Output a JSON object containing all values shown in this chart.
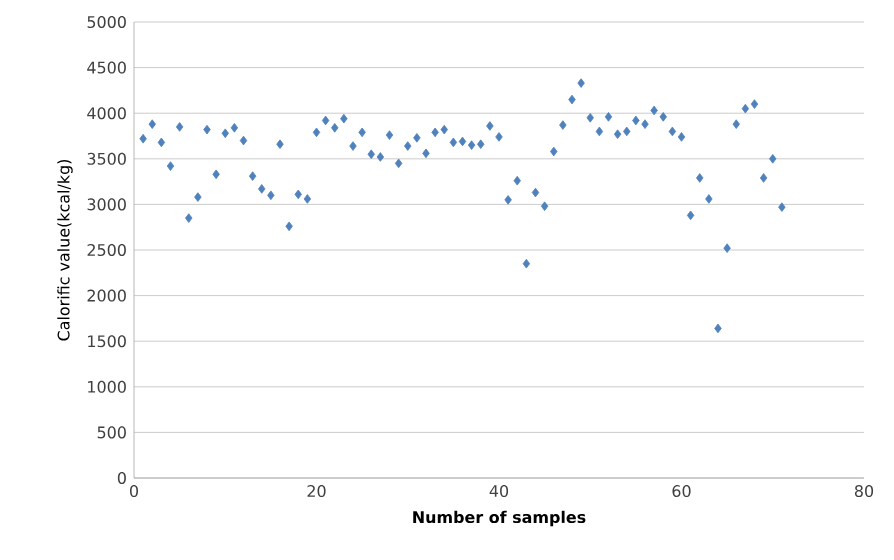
{
  "chart_data": {
    "type": "scatter",
    "xlabel": "Number of samples",
    "ylabel": "Calorific value(kcal/kg)",
    "x": [
      1,
      2,
      3,
      4,
      5,
      6,
      7,
      8,
      9,
      10,
      11,
      12,
      13,
      14,
      15,
      16,
      17,
      18,
      19,
      20,
      21,
      22,
      23,
      24,
      25,
      26,
      27,
      28,
      29,
      30,
      31,
      32,
      33,
      34,
      35,
      36,
      37,
      38,
      39,
      40,
      41,
      42,
      43,
      44,
      45,
      46,
      47,
      48,
      49,
      50,
      51,
      52,
      53,
      54,
      55,
      56,
      57,
      58,
      59,
      60,
      61,
      62,
      63,
      64,
      65,
      66,
      67,
      68,
      69,
      70,
      71
    ],
    "series": [
      {
        "color": "#4f81bd",
        "values": [
          3720,
          3880,
          3680,
          3420,
          3850,
          2850,
          3080,
          3820,
          3330,
          3780,
          3840,
          3700,
          3310,
          3170,
          3100,
          3660,
          2760,
          3110,
          3060,
          3790,
          3920,
          3840,
          3940,
          3640,
          3790,
          3550,
          3520,
          3760,
          3450,
          3640,
          3730,
          3560,
          3790,
          3820,
          3680,
          3690,
          3650,
          3660,
          3860,
          3740,
          3050,
          3260,
          2350,
          3130,
          2980,
          3580,
          3870,
          4150,
          4330,
          3950,
          3800,
          3960,
          3770,
          3800,
          3920,
          3880,
          4030,
          3960,
          3800,
          3740,
          2880,
          3290,
          3060,
          1640,
          2520,
          3880,
          4050,
          4100,
          3290,
          3500,
          2970
        ]
      }
    ],
    "xlim": [
      0,
      80
    ],
    "xticks": [
      0,
      20,
      40,
      60,
      80
    ],
    "ylim": [
      0,
      5000
    ],
    "yticks": [
      0,
      500,
      1000,
      1500,
      2000,
      2500,
      3000,
      3500,
      4000,
      4500,
      5000
    ],
    "grid": "y",
    "marker": "diamond"
  }
}
